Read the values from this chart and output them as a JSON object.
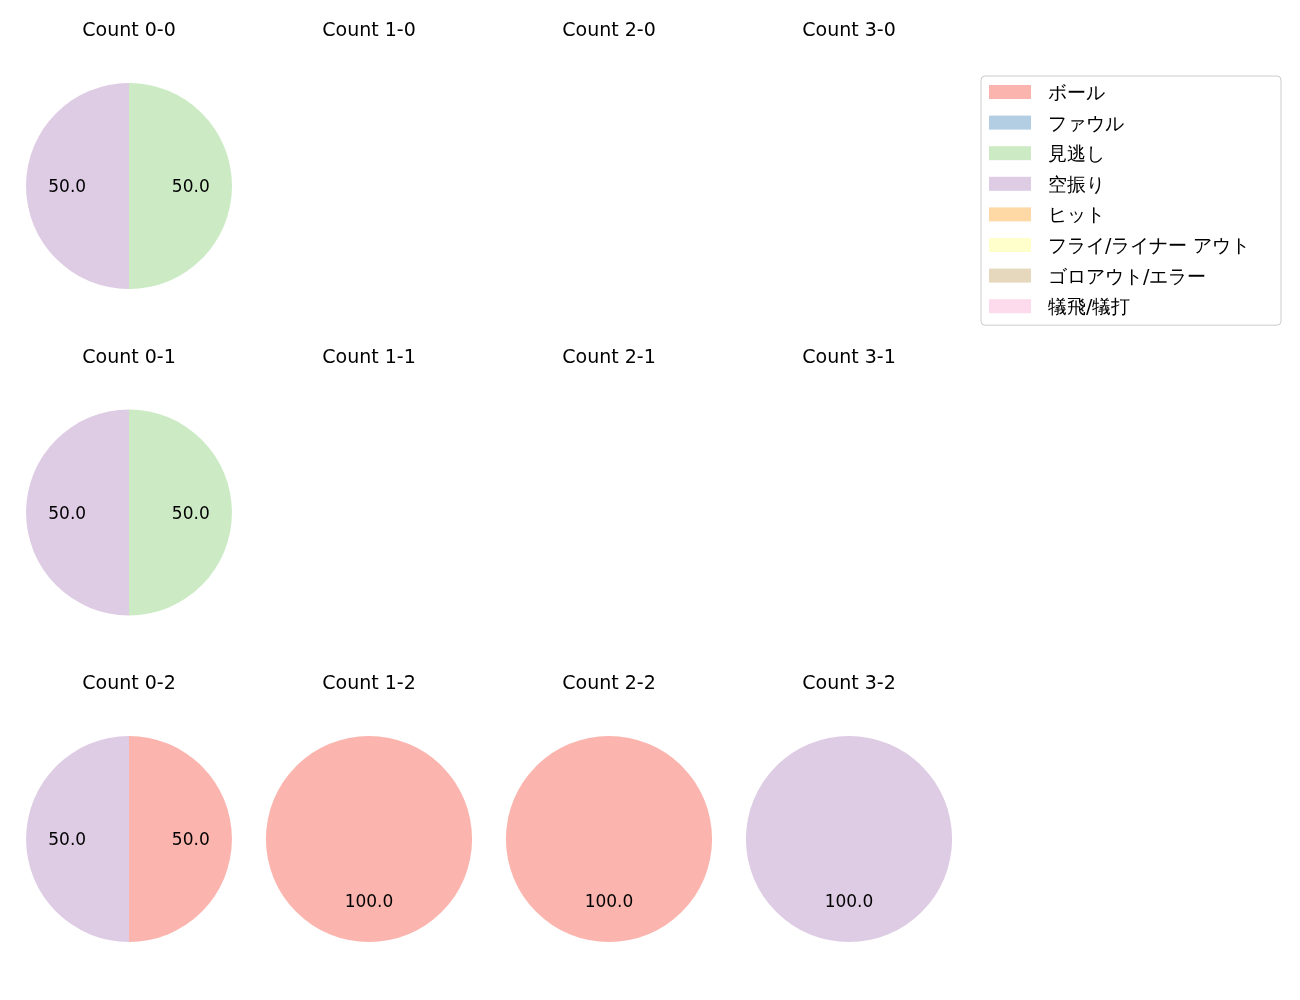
{
  "chart_data": [
    {
      "type": "pie",
      "title": "Count 0-0",
      "categories": [
        "ボール",
        "ファウル",
        "見逃し",
        "空振り",
        "ヒット",
        "フライ/ライナー アウト",
        "ゴロアウト/エラー",
        "犠飛/犠打"
      ],
      "values": [
        0,
        0,
        50,
        50,
        0,
        0,
        0,
        0
      ],
      "colors": [
        "#fbb4ae",
        "#b3cde3",
        "#ccebc5",
        "#decbe4",
        "#fed9a6",
        "#ffffcc",
        "#e5d8bd",
        "#fddaec"
      ],
      "value_labels": [
        null,
        null,
        "50.0",
        "50.0",
        null,
        null,
        null,
        null
      ],
      "legend": "right"
    },
    {
      "type": "other",
      "title": "Count 1-0"
    },
    {
      "type": "other",
      "title": "Count 2-0"
    },
    {
      "type": "other",
      "title": "Count 3-0"
    },
    {
      "type": "pie",
      "title": "Count 0-1",
      "categories": [
        null,
        null
      ],
      "values": [
        50,
        50
      ],
      "colors": [
        "#ccebc5",
        "#decbe4"
      ],
      "value_labels": [
        "50.0",
        "50.0"
      ]
    },
    {
      "type": "other",
      "title": "Count 1-1"
    },
    {
      "type": "other",
      "title": "Count 2-1"
    },
    {
      "type": "other",
      "title": "Count 3-1"
    },
    {
      "type": "pie",
      "title": "Count 0-2",
      "categories": [
        null,
        null
      ],
      "values": [
        50,
        50
      ],
      "colors": [
        "#fbb4ae",
        "#decbe4"
      ],
      "value_labels": [
        "50.0",
        "50.0"
      ]
    },
    {
      "type": "pie",
      "title": "Count 1-2",
      "categories": [
        null
      ],
      "values": [
        100
      ],
      "colors": [
        "#fbb4ae"
      ],
      "value_labels": [
        "100.0"
      ]
    },
    {
      "type": "pie",
      "title": "Count 2-2",
      "categories": [
        null
      ],
      "values": [
        100
      ],
      "colors": [
        "#fbb4ae"
      ],
      "value_labels": [
        "100.0"
      ]
    },
    {
      "type": "pie",
      "title": "Count 3-2",
      "categories": [
        null
      ],
      "values": [
        100
      ],
      "colors": [
        "#decbe4"
      ],
      "value_labels": [
        "100.0"
      ]
    }
  ]
}
